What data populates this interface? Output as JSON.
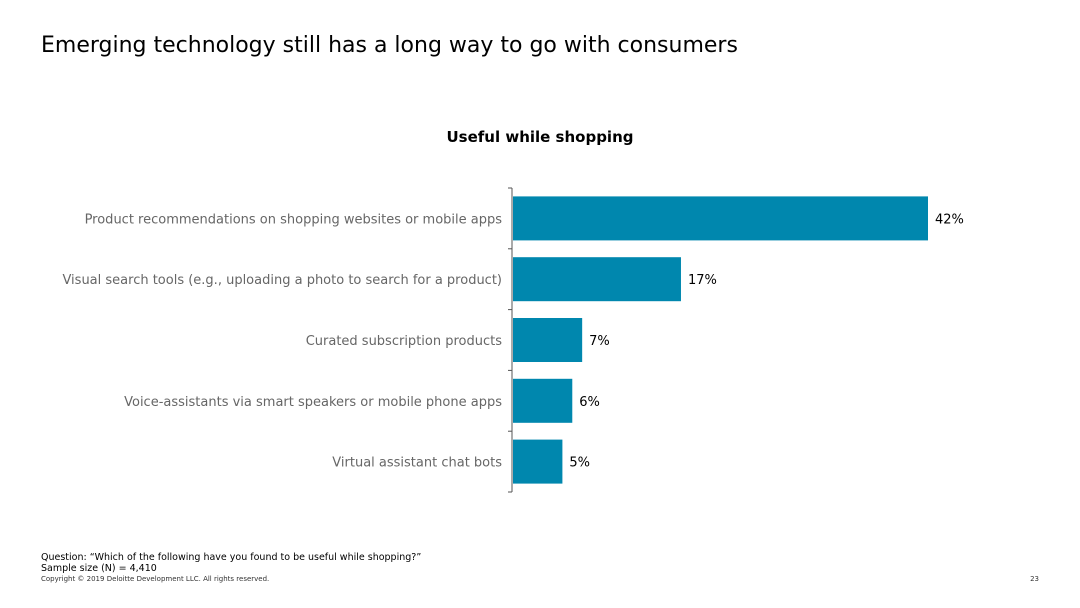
{
  "slide": {
    "title": "Emerging technology still has a long way to go with consumers"
  },
  "chart_data": {
    "type": "bar",
    "orientation": "horizontal",
    "title": "Useful while shopping",
    "categories": [
      "Product recommendations on shopping websites or mobile apps",
      "Visual search tools (e.g., uploading a photo to search for a product)",
      "Curated subscription products",
      "Voice-assistants via smart speakers or mobile phone apps",
      "Virtual assistant chat bots"
    ],
    "values": [
      42,
      17,
      7,
      6,
      5
    ],
    "data_labels": [
      "42%",
      "17%",
      "7%",
      "6%",
      "5%"
    ],
    "unit": "%",
    "xlim": [
      0,
      45
    ],
    "grid": false,
    "legend": "none",
    "bar_color": "#0087AE"
  },
  "footer": {
    "question": "Question: “Which of the following have you found to be useful while shopping?”",
    "sample_size": "Sample size (N) = 4,410",
    "copyright": "Copyright © 2019 Deloitte Development LLC. All rights reserved.",
    "page_number": "23"
  }
}
